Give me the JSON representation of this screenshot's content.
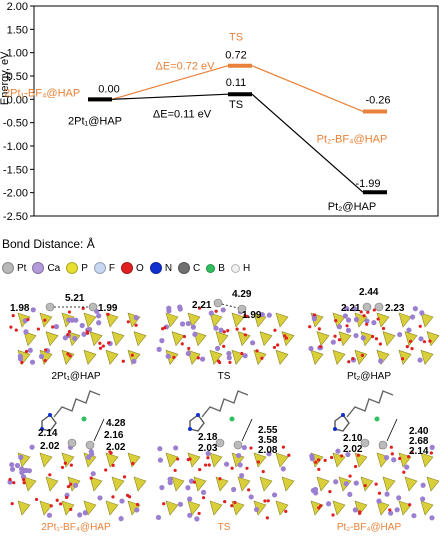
{
  "chart_data": {
    "type": "line",
    "ylabel": "Energy, eV",
    "ylim": [
      -2.5,
      2.0
    ],
    "yticks": [
      "2.00",
      "1.50",
      "1.00",
      "0.50",
      "0.00",
      "-0.50",
      "-1.00",
      "-1.50",
      "-2.00",
      "-2.50"
    ],
    "grid": false,
    "series": [
      {
        "color": "#E8823A",
        "points": [
          {
            "x": 0,
            "y": 0.0,
            "label": "0.00",
            "name": "2Pt₁-BF₄@HAP"
          },
          {
            "x": 1,
            "y": 0.72,
            "label": "0.72",
            "name": "TS"
          },
          {
            "x": 2,
            "y": -0.26,
            "label": "-0.26",
            "name": "Pt₂-BF₄@HAP"
          }
        ]
      },
      {
        "color": "#000000",
        "points": [
          {
            "x": 0,
            "y": 0.0,
            "label": "0.00",
            "name": "2Pt₁@HAP"
          },
          {
            "x": 1,
            "y": 0.11,
            "label": "0.11",
            "name": "TS"
          },
          {
            "x": 2,
            "y": -1.99,
            "label": "-1.99",
            "name": "Pt₂@HAP"
          }
        ]
      }
    ],
    "annotations": [
      "ΔE=0.72 eV",
      "ΔE=0.11 eV"
    ]
  },
  "bond_title": "Bond Distance: Å",
  "legend": [
    {
      "sym": "Pt",
      "color": "#b8b8b8"
    },
    {
      "sym": "Ca",
      "color": "#b49ad8"
    },
    {
      "sym": "P",
      "color": "#e8e030"
    },
    {
      "sym": "F",
      "color": "#c8d8f0"
    },
    {
      "sym": "O",
      "color": "#e02020"
    },
    {
      "sym": "N",
      "color": "#1030d0"
    },
    {
      "sym": "C",
      "color": "#707070"
    },
    {
      "sym": "B",
      "color": "#30c060"
    },
    {
      "sym": "H",
      "color": "#f0f0f0"
    }
  ],
  "panels": [
    {
      "caption": "2Pt₁@HAP",
      "captionColor": "#000000",
      "bonds": [
        "1.98",
        "5.21",
        "1.99"
      ]
    },
    {
      "caption": "TS",
      "captionColor": "#000000",
      "bonds": [
        "2.21",
        "4.29",
        "1.99"
      ]
    },
    {
      "caption": "Pt₂@HAP",
      "captionColor": "#000000",
      "bonds": [
        "2.44",
        "2.21",
        "2.23"
      ]
    },
    {
      "caption": "2Pt₁-BF₄@HAP",
      "captionColor": "#E8823A",
      "bonds": [
        "4.28",
        "2.14",
        "2.16",
        "2.02",
        "2.02"
      ]
    },
    {
      "caption": "TS",
      "captionColor": "#E8823A",
      "bonds": [
        "2.55",
        "2.18",
        "3.58",
        "2.03",
        "2.08"
      ]
    },
    {
      "caption": "Pt₂-BF₄@HAP",
      "captionColor": "#E8823A",
      "bonds": [
        "2.40",
        "2.10",
        "2.68",
        "2.02",
        "2.14"
      ]
    }
  ]
}
